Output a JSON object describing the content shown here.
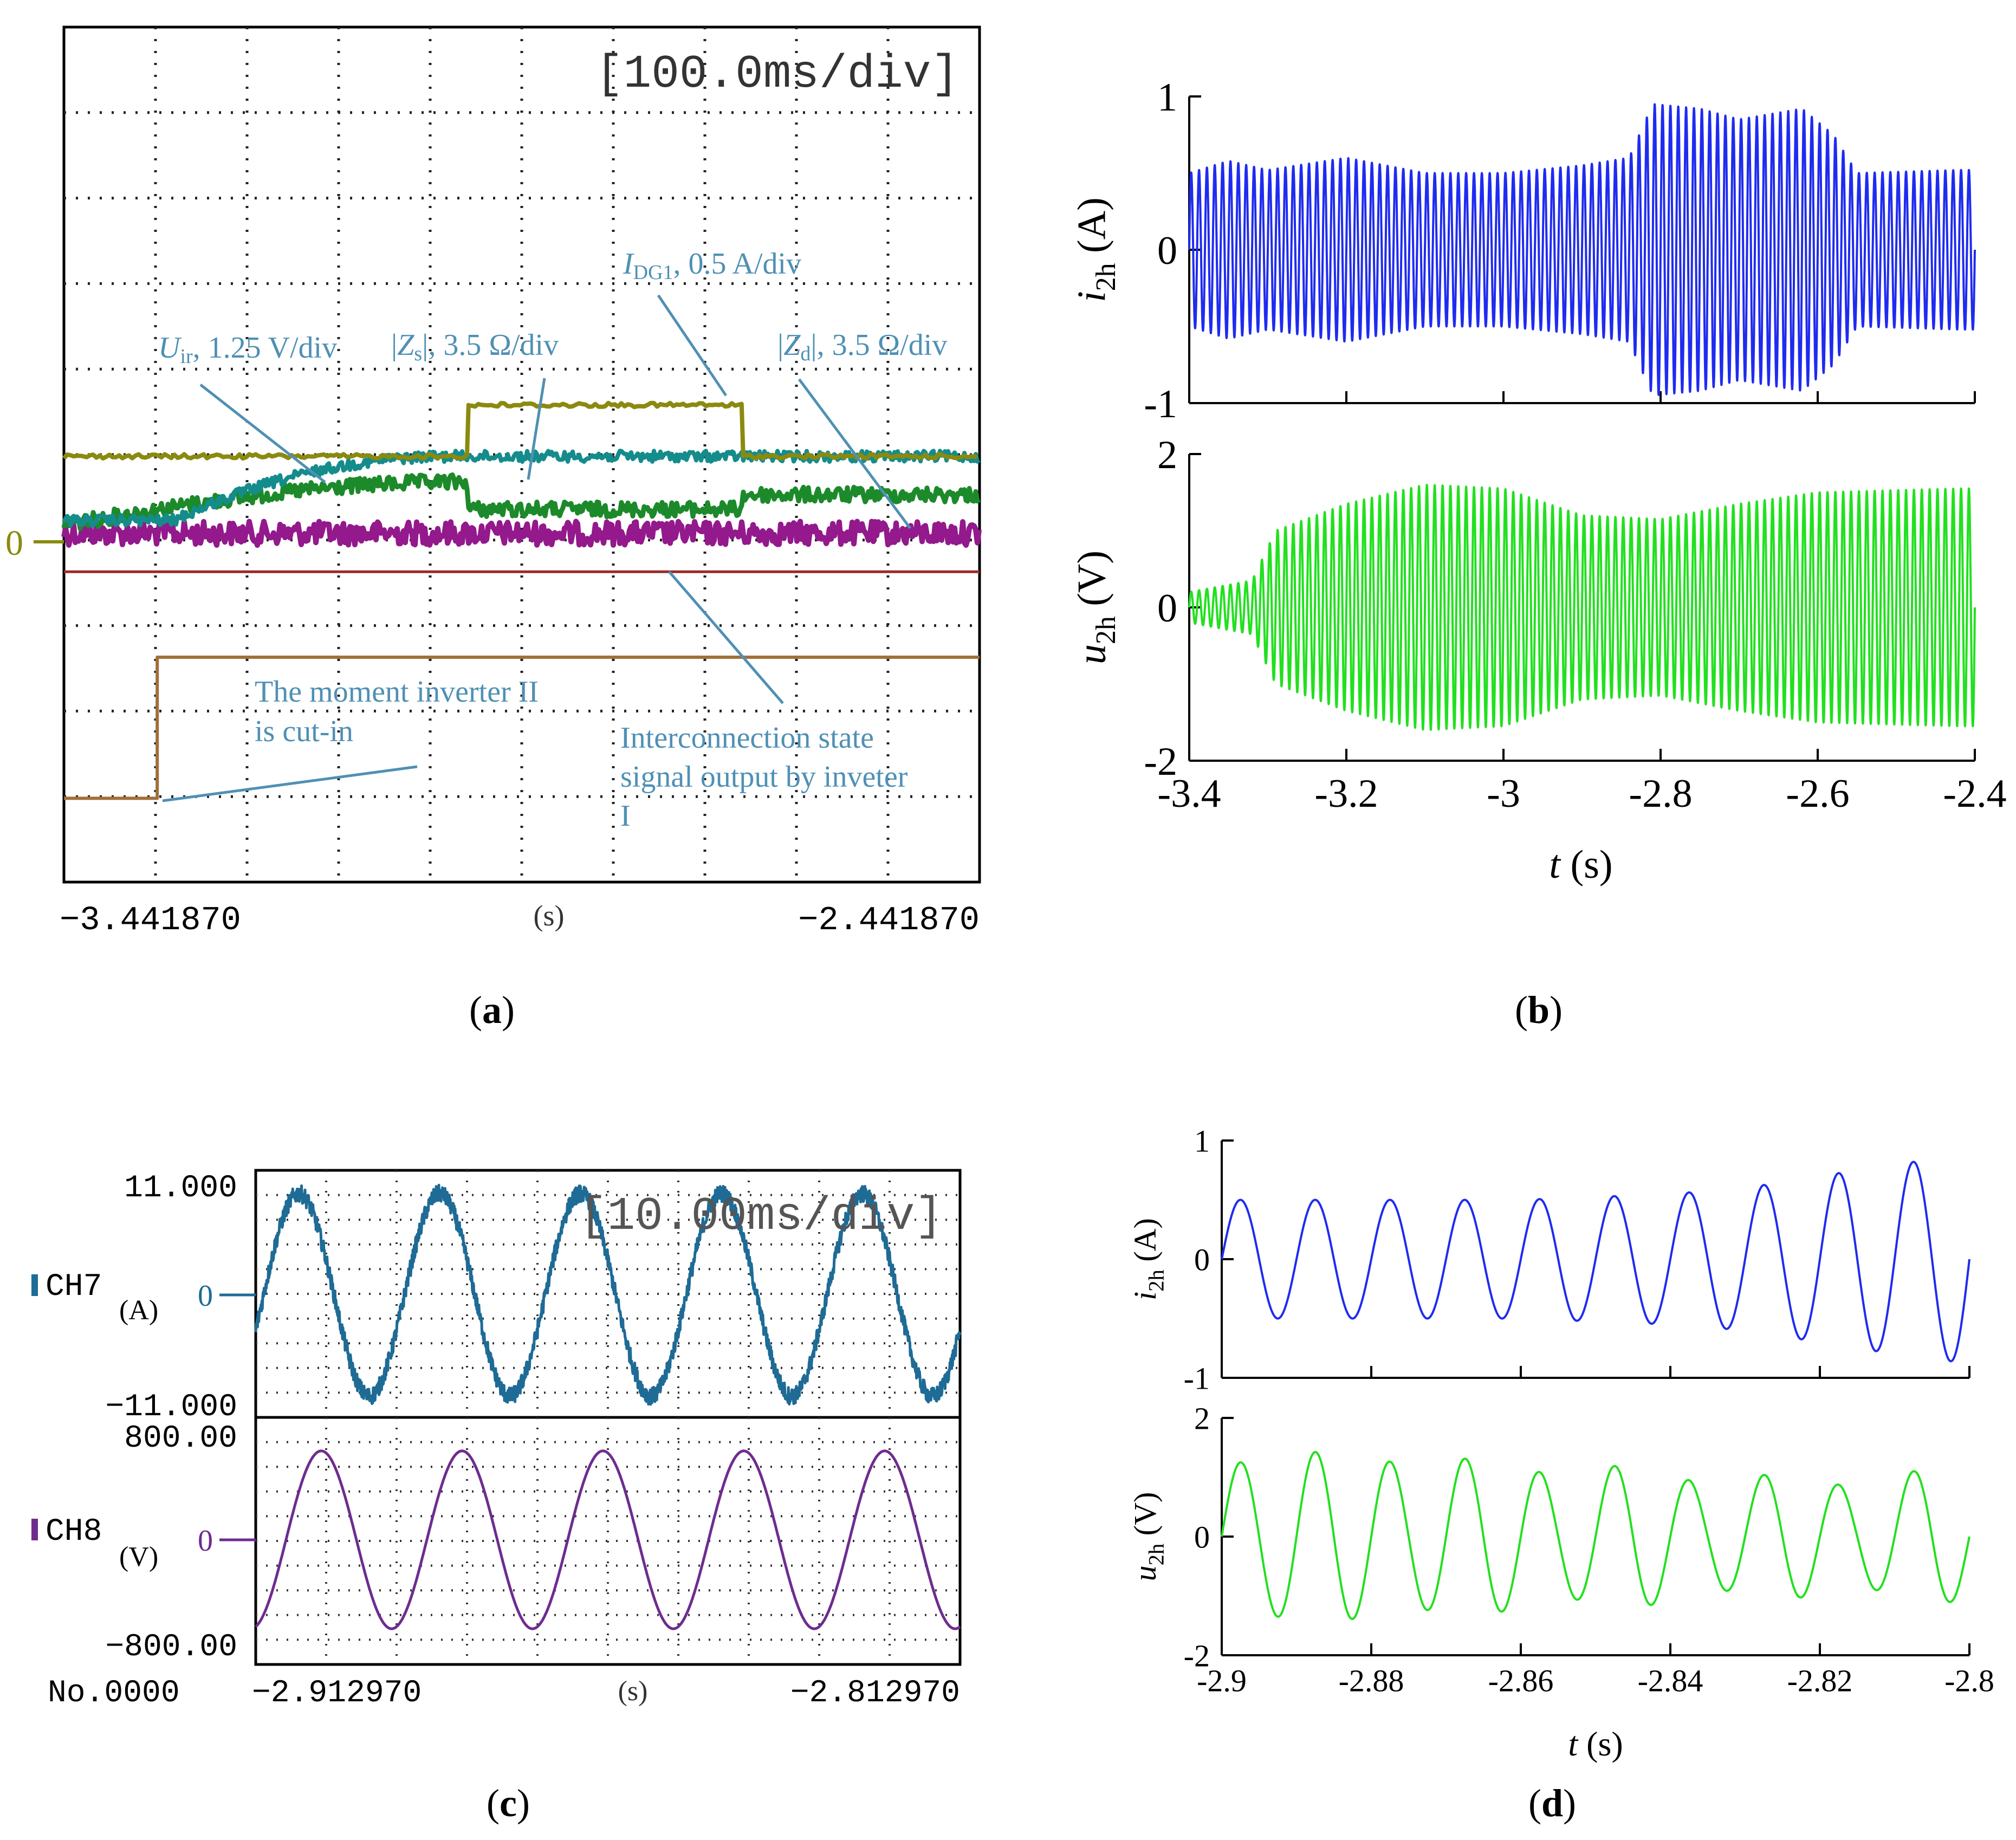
{
  "panel_labels": [
    "a",
    "b",
    "c",
    "d"
  ],
  "colors": {
    "olive": "#8a8a10",
    "teal": "#158c8c",
    "green": "#1c8a2a",
    "purple": "#93198c",
    "darkred": "#9b2a2a",
    "brown": "#a26f3a",
    "blue": "#1f2bf0",
    "lightgreen": "#22e01f",
    "annotation": "#4f90b4",
    "ch7": "#1e6b96",
    "ch8": "#6e2c8f"
  },
  "chart_data": [
    {
      "panel": "a",
      "type": "line",
      "title": "[100.0ms/div]",
      "x_start_label": "−3.441870",
      "x_end_label": "−2.441870",
      "x_unit": "(s)",
      "zero_marker": "0",
      "x_range": [
        -3.44187,
        -2.44187
      ],
      "series": [
        {
          "name": "I_DG1, 0.5 A/div",
          "label_main": "I",
          "label_sub": "DG1",
          "label_rest": ", 0.5 A/div",
          "color": "olive",
          "low_level": 1.0,
          "high_level": 1.6,
          "step_up_t": -3.0,
          "step_down_t": -2.7
        },
        {
          "name": "U_ir, 1.25 V/div",
          "label_main": "U",
          "label_sub": "ir",
          "label_rest": ", 1.25 V/div",
          "color": "teal",
          "start_level": 0.25,
          "end_level": 1.0
        },
        {
          "name": "|Z_s|, 3.5 Ω/div",
          "label_pre": "|",
          "label_main": "Z",
          "label_sub": "s",
          "label_rest": "|, 3.5 Ω/div",
          "color": "green",
          "start_level": 0.2,
          "peak_level": 0.7
        },
        {
          "name": "|Z_d|, 3.5 Ω/div",
          "label_pre": "|",
          "label_main": "Z",
          "label_sub": "d",
          "label_rest": "|, 3.5 Ω/div",
          "color": "purple",
          "level": 0.1
        },
        {
          "name": "Interconnection state signal output by inveter I",
          "color": "darkred",
          "level": -0.35
        },
        {
          "name": "The moment inverter II is cut-in",
          "color": "brown",
          "low_level": -3.0,
          "high_level": -1.35,
          "step_up_t": -3.34
        }
      ],
      "annotations": {
        "cutin_line1": "The moment inverter II",
        "cutin_line2": "is cut-in",
        "interconnect_line1": "Interconnection state",
        "interconnect_line2": "signal output by inveter",
        "interconnect_line3": "I"
      }
    },
    {
      "panel": "b",
      "type": "line",
      "xlabel_italic": "t",
      "xlabel_rest": " (s)",
      "x_ticks": [
        "-3.4",
        "-3.2",
        "-3",
        "-2.8",
        "-2.6",
        "-2.4"
      ],
      "x_tick_values": [
        -3.4,
        -3.2,
        -3.0,
        -2.8,
        -2.6,
        -2.4
      ],
      "xlim": [
        -3.4,
        -2.4
      ],
      "subplots": [
        {
          "ylabel_italic": "i",
          "ylabel_sub": "2h",
          "ylabel_rest": " (A)",
          "y_ticks": [
            "1",
            "0",
            "-1"
          ],
          "y_tick_values": [
            1,
            0,
            -1
          ],
          "ylim": [
            -1,
            1
          ],
          "color": "blue",
          "frequency_hz": 100,
          "envelope": [
            [
              -3.4,
              0.5
            ],
            [
              -3.35,
              0.58
            ],
            [
              -3.3,
              0.52
            ],
            [
              -3.2,
              0.6
            ],
            [
              -3.1,
              0.5
            ],
            [
              -3.0,
              0.5
            ],
            [
              -2.9,
              0.55
            ],
            [
              -2.84,
              0.6
            ],
            [
              -2.81,
              0.95
            ],
            [
              -2.75,
              0.92
            ],
            [
              -2.7,
              0.85
            ],
            [
              -2.62,
              0.92
            ],
            [
              -2.58,
              0.75
            ],
            [
              -2.55,
              0.5
            ],
            [
              -2.42,
              0.52
            ]
          ]
        },
        {
          "ylabel_italic": "u",
          "ylabel_sub": "2h",
          "ylabel_rest": " (V)",
          "y_ticks": [
            "2",
            "0",
            "-2"
          ],
          "y_tick_values": [
            2,
            0,
            -2
          ],
          "ylim": [
            -2,
            2
          ],
          "color": "lightgreen",
          "frequency_hz": 100,
          "envelope": [
            [
              -3.4,
              0.2
            ],
            [
              -3.32,
              0.35
            ],
            [
              -3.29,
              1.0
            ],
            [
              -3.2,
              1.35
            ],
            [
              -3.1,
              1.6
            ],
            [
              -3.0,
              1.55
            ],
            [
              -2.9,
              1.2
            ],
            [
              -2.8,
              1.15
            ],
            [
              -2.7,
              1.35
            ],
            [
              -2.6,
              1.5
            ],
            [
              -2.42,
              1.55
            ]
          ]
        }
      ]
    },
    {
      "panel": "c",
      "type": "line",
      "title": "[10.00ms/div]",
      "x_start_label": "−2.912970",
      "x_end_label": "−2.812970",
      "x_unit": "(s)",
      "footer_label": "No.0000",
      "x_range": [
        -2.91297,
        -2.81297
      ],
      "channels": [
        {
          "name": "CH7",
          "unit": "(A)",
          "ymax": "11.000",
          "ymin": "−11.000",
          "zero": "0",
          "amplitude": 0.82,
          "frequency_hz": 50,
          "noisy": true,
          "color": "ch7"
        },
        {
          "name": "CH8",
          "unit": "(V)",
          "ymax": "800.00",
          "ymin": "−800.00",
          "zero": "0",
          "amplitude": 0.72,
          "frequency_hz": 50,
          "noisy": false,
          "color": "ch8"
        }
      ]
    },
    {
      "panel": "d",
      "type": "line",
      "xlabel_italic": "t",
      "xlabel_rest": " (s)",
      "x_ticks": [
        "-2.9",
        "-2.88",
        "-2.86",
        "-2.84",
        "-2.82",
        "-2.8"
      ],
      "x_tick_values": [
        -2.9,
        -2.88,
        -2.86,
        -2.84,
        -2.82,
        -2.8
      ],
      "xlim": [
        -2.9,
        -2.8
      ],
      "subplots": [
        {
          "ylabel_italic": "i",
          "ylabel_sub": "2h",
          "ylabel_rest": " (A)",
          "y_ticks": [
            "1",
            "0",
            "-1"
          ],
          "y_tick_values": [
            1,
            0,
            -1
          ],
          "ylim": [
            -1,
            1
          ],
          "color": "blue",
          "frequency_hz": 100,
          "envelope": [
            [
              -2.9,
              0.5
            ],
            [
              -2.86,
              0.5
            ],
            [
              -2.84,
              0.55
            ],
            [
              -2.83,
              0.6
            ],
            [
              -2.82,
              0.7
            ],
            [
              -2.81,
              0.8
            ],
            [
              -2.8,
              0.88
            ]
          ]
        },
        {
          "ylabel_italic": "u",
          "ylabel_sub": "2h",
          "ylabel_rest": " (V)",
          "y_ticks": [
            "2",
            "0",
            "-2"
          ],
          "y_tick_values": [
            2,
            0,
            -2
          ],
          "ylim": [
            -2,
            2
          ],
          "color": "lightgreen",
          "frequency_hz": 100,
          "envelope": [
            [
              -2.9,
              1.2
            ],
            [
              -2.89,
              1.4
            ],
            [
              -2.885,
              1.45
            ],
            [
              -2.875,
              1.2
            ],
            [
              -2.865,
              1.35
            ],
            [
              -2.855,
              1.0
            ],
            [
              -2.845,
              1.25
            ],
            [
              -2.835,
              0.85
            ],
            [
              -2.825,
              1.1
            ],
            [
              -2.815,
              0.8
            ],
            [
              -2.805,
              1.2
            ],
            [
              -2.8,
              1.0
            ]
          ]
        }
      ]
    }
  ]
}
